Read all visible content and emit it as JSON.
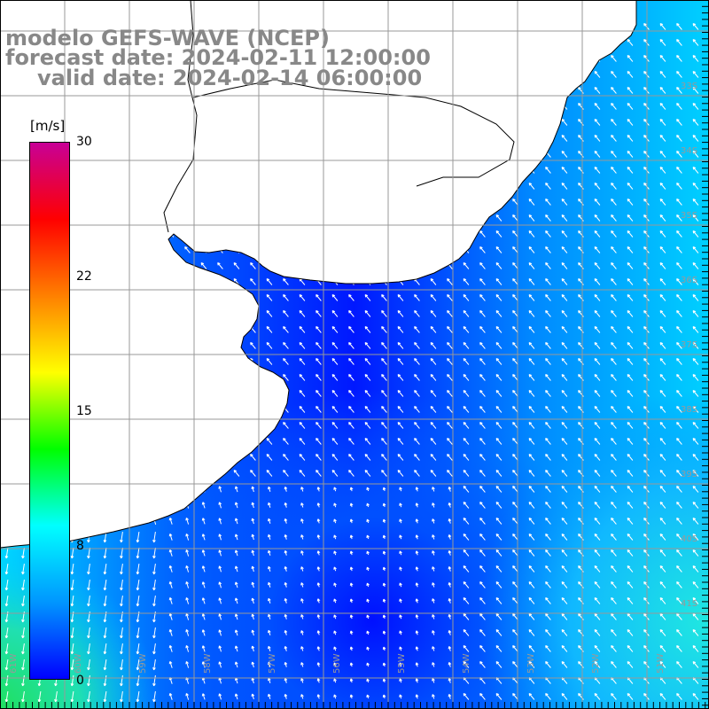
{
  "header": {
    "line1": "modelo GEFS-WAVE (NCEP)",
    "line2": "forecast date: 2024-02-11 12:00:00",
    "line3": "valid date: 2024-02-14 06:00:00"
  },
  "colorbar": {
    "unit": "[m/s]",
    "ticks": [
      {
        "value": 30,
        "label": "30"
      },
      {
        "value": 22,
        "label": "22"
      },
      {
        "value": 15,
        "label": "15"
      },
      {
        "value": 8,
        "label": "8"
      },
      {
        "value": 0,
        "label": "0"
      }
    ],
    "range": [
      0,
      30
    ],
    "colors": [
      "#0000ff",
      "#0096ff",
      "#00ffff",
      "#00ff00",
      "#ffff00",
      "#ff8000",
      "#ff0000",
      "#c80096"
    ]
  },
  "grid": {
    "lat_labels": [
      "33S",
      "34S",
      "35S",
      "36S",
      "37S",
      "38S",
      "39S",
      "40S",
      "41S"
    ],
    "lon_labels": [
      "61W",
      "60W",
      "59W",
      "58W",
      "57W",
      "56W",
      "55W",
      "54W",
      "53W",
      "52W",
      "51W"
    ]
  },
  "colors": {
    "land": "#ffffff",
    "coast": "#000000",
    "grid": "#999999",
    "arrow": "#ffffff"
  }
}
